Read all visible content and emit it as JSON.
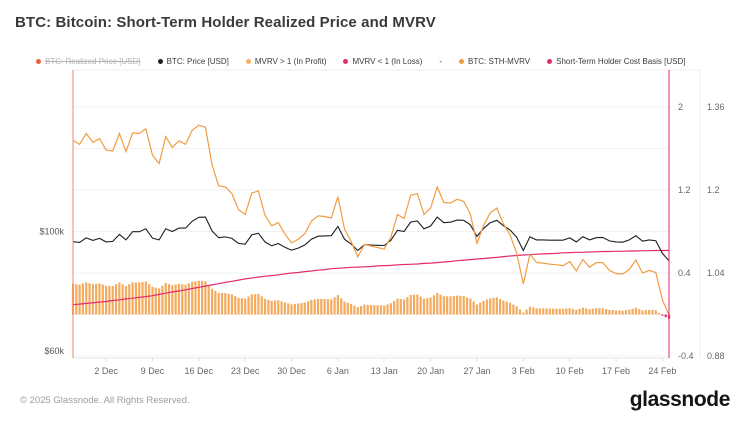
{
  "title": "BTC: Bitcoin: Short-Term Holder Realized Price and MVRV",
  "legend": {
    "items": [
      {
        "label": "BTC: Realized Price [USD]",
        "color": "#e8613c",
        "disabled": true
      },
      {
        "label": "BTC: Price [USD]",
        "color": "#1f1f1f",
        "disabled": false
      },
      {
        "label": "MVRV > 1 (In Profit)",
        "color": "#f5b163",
        "disabled": false
      },
      {
        "label": "MVRV < 1 (In Loss)",
        "color": "#e52a70",
        "disabled": false
      },
      {
        "label": "-",
        "color": null,
        "disabled": false
      },
      {
        "label": "BTC: STH-MVRV",
        "color": "#f09a38",
        "disabled": false
      },
      {
        "label": "Short-Term Holder Cost Basis [USD]",
        "color": "#e52a70",
        "disabled": false
      }
    ]
  },
  "footer": {
    "copyright": "© 2025 Glassnode. All Rights Reserved.",
    "brand": "glassnode"
  },
  "colors": {
    "grid": "#f1f1f1",
    "plot_top_border": "#ededed",
    "plot_bottom_border": "#e7e7e7",
    "left_axis_border": "#f0876a",
    "right_axis_border": "#e52a70",
    "outer_axis_separator": "#f1ecdf",
    "tick": "#dddddd",
    "axis_text": "#666666"
  },
  "chart_data": {
    "type": "line+bar",
    "title": "BTC: Bitcoin: Short-Term Holder Realized Price and MVRV",
    "x_tick_labels": [
      "2 Dec",
      "9 Dec",
      "16 Dec",
      "23 Dec",
      "30 Dec",
      "6 Jan",
      "13 Jan",
      "20 Jan",
      "27 Jan",
      "3 Feb",
      "10 Feb",
      "17 Feb",
      "24 Feb"
    ],
    "x_tick_day_index": [
      5,
      12,
      19,
      26,
      33,
      40,
      47,
      54,
      61,
      68,
      75,
      82,
      89
    ],
    "y_axis_left_usd": {
      "scale": "log",
      "tick_labels": [
        "$100k",
        "$60k"
      ],
      "tick_values_kusd": [
        100,
        60
      ]
    },
    "y_axis_right_inner": {
      "tick_labels": [
        "2",
        "1.2",
        "0.4",
        "-0.4"
      ],
      "tick_values": [
        2,
        1.2,
        0.4,
        -0.4
      ],
      "gridline_values": [
        2,
        1.6,
        1.2,
        0.8,
        0.4,
        0,
        -0.4
      ]
    },
    "y_axis_right_outer": {
      "tick_labels": [
        "1.36",
        "1.2",
        "1.04",
        "0.88"
      ],
      "tick_values": [
        1.36,
        1.2,
        1.04,
        0.88
      ]
    },
    "series": [
      {
        "name": "BTC: Price [USD]",
        "type": "line",
        "axis": "left_usd",
        "color": "#1f1f1f",
        "unit": "kUSD",
        "values": [
          95.9,
          95.6,
          97.4,
          96.4,
          97.2,
          95.8,
          96.0,
          98.8,
          96.6,
          99.9,
          99.9,
          101.1,
          97.3,
          96.6,
          101.1,
          100.0,
          101.4,
          101.4,
          104.3,
          106.0,
          106.1,
          100.2,
          97.5,
          97.8,
          97.2,
          95.2,
          94.9,
          98.6,
          99.3,
          95.8,
          94.3,
          95.2,
          93.7,
          92.6,
          93.4,
          94.6,
          96.9,
          98.1,
          98.2,
          98.3,
          102.1,
          96.9,
          95.0,
          92.5,
          94.7,
          94.6,
          94.5,
          94.4,
          96.5,
          100.5,
          100.0,
          104.0,
          104.4,
          101.1,
          102.3,
          106.1,
          103.7,
          103.9,
          104.8,
          104.7,
          102.8,
          98.0,
          101.3,
          103.7,
          104.7,
          102.4,
          100.6,
          97.7,
          92.5,
          97.8,
          96.6,
          96.6,
          96.5,
          96.5,
          96.5,
          97.4,
          95.8,
          97.9,
          96.6,
          97.5,
          97.6,
          96.2,
          95.8,
          95.7,
          96.6,
          98.3,
          96.1,
          96.6,
          96.3,
          91.4,
          88.7
        ]
      },
      {
        "name": "Short-Term Holder Cost Basis [USD]",
        "type": "line",
        "axis": "left_usd",
        "color": "#e52a70",
        "unit": "kUSD",
        "values": [
          74.0,
          74.2,
          74.4,
          74.6,
          74.8,
          75.0,
          75.3,
          75.5,
          75.8,
          76.0,
          76.3,
          76.5,
          76.8,
          77.2,
          77.6,
          78.0,
          78.3,
          78.7,
          79.1,
          79.5,
          79.9,
          80.3,
          80.7,
          81.1,
          81.5,
          81.9,
          82.3,
          82.6,
          82.9,
          83.2,
          83.4,
          83.7,
          84.0,
          84.3,
          84.5,
          84.8,
          85.0,
          85.3,
          85.5,
          85.8,
          86.0,
          86.1,
          86.3,
          86.4,
          86.5,
          86.6,
          86.8,
          86.9,
          87.0,
          87.2,
          87.3,
          87.4,
          87.5,
          87.7,
          87.8,
          88.0,
          88.2,
          88.4,
          88.7,
          88.9,
          89.1,
          89.3,
          89.5,
          89.7,
          89.9,
          90.2,
          90.4,
          90.6,
          90.8,
          90.9,
          91.1,
          91.2,
          91.3,
          91.4,
          91.6,
          91.7,
          91.8,
          91.8,
          91.9,
          92.0,
          92.1,
          92.1,
          92.2,
          92.2,
          92.3,
          92.3,
          92.4,
          92.4,
          92.5,
          92.5,
          92.5
        ]
      },
      {
        "name": "BTC: STH-MVRV",
        "type": "line",
        "axis": "right_outer",
        "color": "#f09d42",
        "values": [
          1.296,
          1.288,
          1.309,
          1.292,
          1.299,
          1.277,
          1.275,
          1.309,
          1.274,
          1.31,
          1.309,
          1.318,
          1.267,
          1.251,
          1.303,
          1.282,
          1.295,
          1.288,
          1.315,
          1.325,
          1.321,
          1.248,
          1.208,
          1.206,
          1.193,
          1.162,
          1.153,
          1.194,
          1.198,
          1.151,
          1.131,
          1.137,
          1.115,
          1.098,
          1.105,
          1.116,
          1.14,
          1.15,
          1.149,
          1.146,
          1.187,
          1.125,
          1.101,
          1.071,
          1.095,
          1.092,
          1.089,
          1.086,
          1.109,
          1.153,
          1.145,
          1.19,
          1.193,
          1.153,
          1.165,
          1.206,
          1.176,
          1.175,
          1.182,
          1.178,
          1.154,
          1.097,
          1.132,
          1.156,
          1.165,
          1.135,
          1.113,
          1.078,
          1.019,
          1.076,
          1.06,
          1.059,
          1.057,
          1.056,
          1.054,
          1.062,
          1.044,
          1.066,
          1.051,
          1.06,
          1.06,
          1.045,
          1.039,
          1.038,
          1.047,
          1.065,
          1.04,
          1.045,
          1.041,
          0.988,
          0.959
        ]
      },
      {
        "name": "MVRV > 1 (In Profit)",
        "type": "bar",
        "axis": "right_inner",
        "color": "#f3ab5f",
        "note": "bars show STH-MVRV minus 1 where positive"
      },
      {
        "name": "MVRV < 1 (In Loss)",
        "type": "bar",
        "axis": "right_inner",
        "color": "#e52a70",
        "note": "bars show STH-MVRV minus 1 where negative"
      }
    ]
  }
}
